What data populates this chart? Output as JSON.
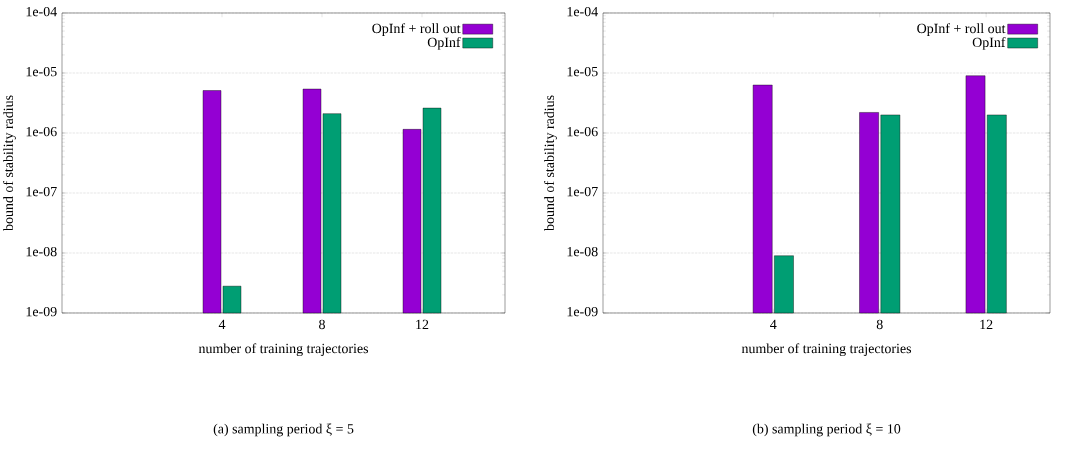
{
  "chart_data": [
    {
      "type": "bar",
      "categories": [
        "4",
        "8",
        "12"
      ],
      "xlabel": "number of training trajectories",
      "ylabel": "bound of stability radius",
      "log": "y",
      "ylim": [
        1e-09,
        0.0001
      ],
      "yticks": [
        {
          "value": 1e-09,
          "label": "1e-09"
        },
        {
          "value": 1e-08,
          "label": "1e-08"
        },
        {
          "value": 1e-07,
          "label": "1e-07"
        },
        {
          "value": 1e-06,
          "label": "1e-06"
        },
        {
          "value": 1e-05,
          "label": "1e-05"
        },
        {
          "value": 0.0001,
          "label": "1e-04"
        }
      ],
      "grid": "y",
      "legend": "top right",
      "series": [
        {
          "name": "OpInf + roll out",
          "color": "#9400d3",
          "values": [
            5.1e-06,
            5.4e-06,
            1.15e-06
          ]
        },
        {
          "name": "OpInf",
          "color": "#009e73",
          "values": [
            2.8e-09,
            2.1e-06,
            2.6e-06
          ]
        }
      ],
      "annotations": [
        "(a) sampling period ξ = 5"
      ]
    },
    {
      "type": "bar",
      "categories": [
        "4",
        "8",
        "12"
      ],
      "xlabel": "number of training trajectories",
      "ylabel": "bound of stability radius",
      "log": "y",
      "ylim": [
        1e-09,
        0.0001
      ],
      "yticks": [
        {
          "value": 1e-09,
          "label": "1e-09"
        },
        {
          "value": 1e-08,
          "label": "1e-08"
        },
        {
          "value": 1e-07,
          "label": "1e-07"
        },
        {
          "value": 1e-06,
          "label": "1e-06"
        },
        {
          "value": 1e-05,
          "label": "1e-05"
        },
        {
          "value": 0.0001,
          "label": "1e-04"
        }
      ],
      "grid": "y",
      "legend": "top right",
      "series": [
        {
          "name": "OpInf + roll out",
          "color": "#9400d3",
          "values": [
            6.3e-06,
            2.2e-06,
            9e-06
          ]
        },
        {
          "name": "OpInf",
          "color": "#009e73",
          "values": [
            9e-09,
            2e-06,
            2e-06
          ]
        }
      ],
      "annotations": [
        "(b) sampling period ξ = 10"
      ]
    }
  ]
}
